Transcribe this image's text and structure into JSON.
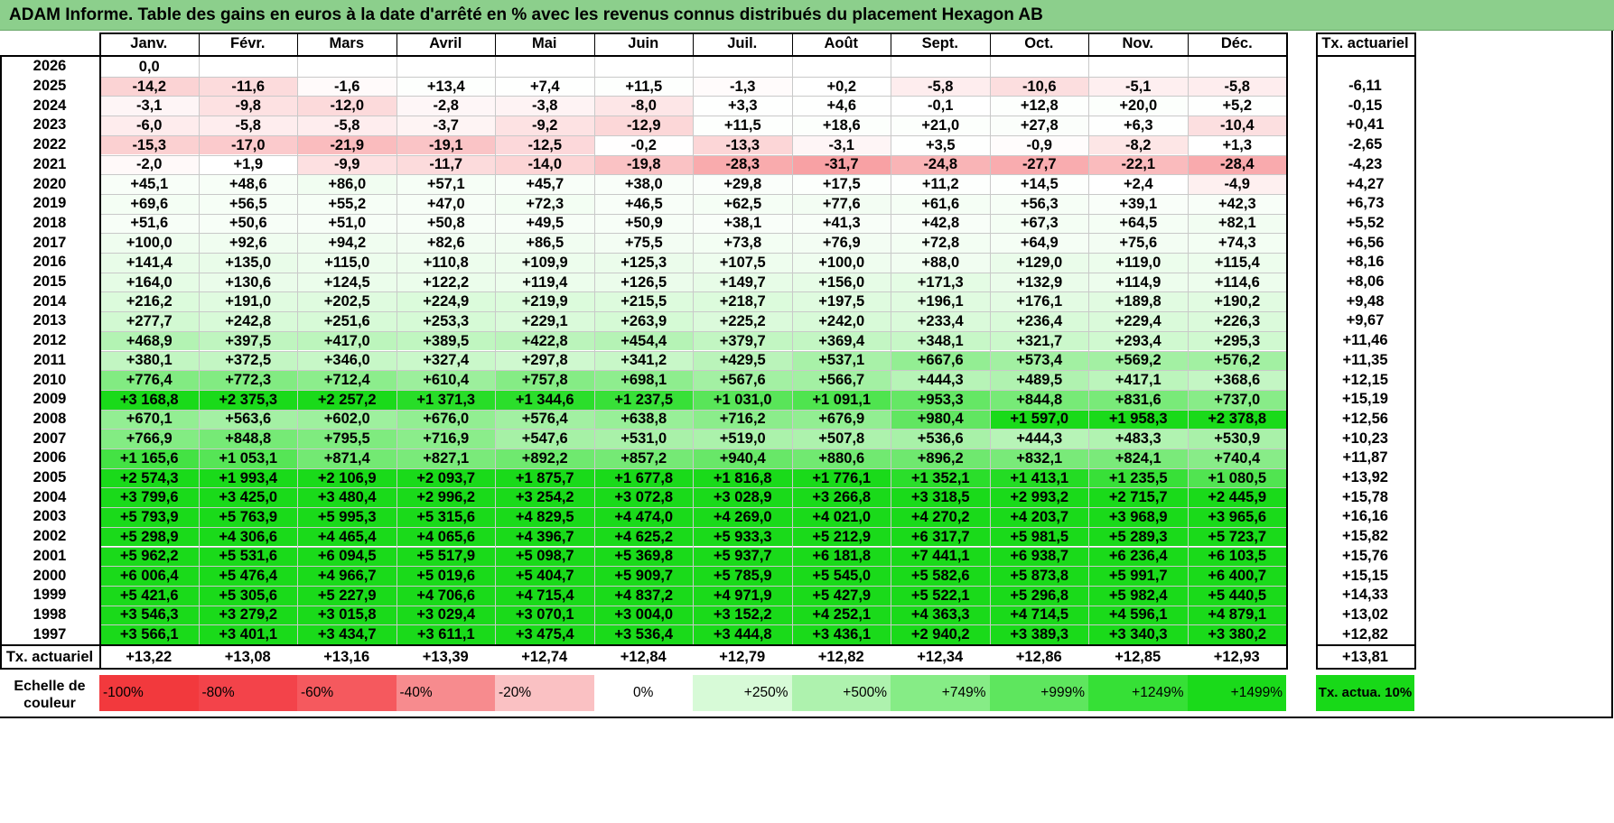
{
  "title": "ADAM Informe. Table des gains en euros à la date d'arrêté en % avec les revenus connus distribués du placement Hexagon AB",
  "months": [
    "Janv.",
    "Févr.",
    "Mars",
    "Avril",
    "Mai",
    "Juin",
    "Juil.",
    "Août",
    "Sept.",
    "Oct.",
    "Nov.",
    "Déc."
  ],
  "annual_header": "Tx. actuariel",
  "rows": [
    {
      "year": "2026",
      "values": [
        "0,0",
        "",
        "",
        "",
        "",
        "",
        "",
        "",
        "",
        "",
        "",
        ""
      ],
      "annual": ""
    },
    {
      "year": "2025",
      "values": [
        "-14,2",
        "-11,6",
        "-1,6",
        "+13,4",
        "+7,4",
        "+11,5",
        "-1,3",
        "+0,2",
        "-5,8",
        "-10,6",
        "-5,1",
        "-5,8"
      ],
      "annual": "-6,11"
    },
    {
      "year": "2024",
      "values": [
        "-3,1",
        "-9,8",
        "-12,0",
        "-2,8",
        "-3,8",
        "-8,0",
        "+3,3",
        "+4,6",
        "-0,1",
        "+12,8",
        "+20,0",
        "+5,2"
      ],
      "annual": "-0,15"
    },
    {
      "year": "2023",
      "values": [
        "-6,0",
        "-5,8",
        "-5,8",
        "-3,7",
        "-9,2",
        "-12,9",
        "+11,5",
        "+18,6",
        "+21,0",
        "+27,8",
        "+6,3",
        "-10,4"
      ],
      "annual": "+0,41"
    },
    {
      "year": "2022",
      "values": [
        "-15,3",
        "-17,0",
        "-21,9",
        "-19,1",
        "-12,5",
        "-0,2",
        "-13,3",
        "-3,1",
        "+3,5",
        "-0,9",
        "-8,2",
        "+1,3"
      ],
      "annual": "-2,65"
    },
    {
      "year": "2021",
      "values": [
        "-2,0",
        "+1,9",
        "-9,9",
        "-11,7",
        "-14,0",
        "-19,8",
        "-28,3",
        "-31,7",
        "-24,8",
        "-27,7",
        "-22,1",
        "-28,4"
      ],
      "annual": "-4,23"
    },
    {
      "year": "2020",
      "values": [
        "+45,1",
        "+48,6",
        "+86,0",
        "+57,1",
        "+45,7",
        "+38,0",
        "+29,8",
        "+17,5",
        "+11,2",
        "+14,5",
        "+2,4",
        "-4,9"
      ],
      "annual": "+4,27"
    },
    {
      "year": "2019",
      "values": [
        "+69,6",
        "+56,5",
        "+55,2",
        "+47,0",
        "+72,3",
        "+46,5",
        "+62,5",
        "+77,6",
        "+61,6",
        "+56,3",
        "+39,1",
        "+42,3"
      ],
      "annual": "+6,73"
    },
    {
      "year": "2018",
      "values": [
        "+51,6",
        "+50,6",
        "+51,0",
        "+50,8",
        "+49,5",
        "+50,9",
        "+38,1",
        "+41,3",
        "+42,8",
        "+67,3",
        "+64,5",
        "+82,1"
      ],
      "annual": "+5,52"
    },
    {
      "year": "2017",
      "values": [
        "+100,0",
        "+92,6",
        "+94,2",
        "+82,6",
        "+86,5",
        "+75,5",
        "+73,8",
        "+76,9",
        "+72,8",
        "+64,9",
        "+75,6",
        "+74,3"
      ],
      "annual": "+6,56"
    },
    {
      "year": "2016",
      "values": [
        "+141,4",
        "+135,0",
        "+115,0",
        "+110,8",
        "+109,9",
        "+125,3",
        "+107,5",
        "+100,0",
        "+88,0",
        "+129,0",
        "+119,0",
        "+115,4"
      ],
      "annual": "+8,16"
    },
    {
      "year": "2015",
      "values": [
        "+164,0",
        "+130,6",
        "+124,5",
        "+122,2",
        "+119,4",
        "+126,5",
        "+149,7",
        "+156,0",
        "+171,3",
        "+132,9",
        "+114,9",
        "+114,6"
      ],
      "annual": "+8,06"
    },
    {
      "year": "2014",
      "values": [
        "+216,2",
        "+191,0",
        "+202,5",
        "+224,9",
        "+219,9",
        "+215,5",
        "+218,7",
        "+197,5",
        "+196,1",
        "+176,1",
        "+189,8",
        "+190,2"
      ],
      "annual": "+9,48"
    },
    {
      "year": "2013",
      "values": [
        "+277,7",
        "+242,8",
        "+251,6",
        "+253,3",
        "+229,1",
        "+263,9",
        "+225,2",
        "+242,0",
        "+233,4",
        "+236,4",
        "+229,4",
        "+226,3"
      ],
      "annual": "+9,67"
    },
    {
      "year": "2012",
      "values": [
        "+468,9",
        "+397,5",
        "+417,0",
        "+389,5",
        "+422,8",
        "+454,4",
        "+379,7",
        "+369,4",
        "+348,1",
        "+321,7",
        "+293,4",
        "+295,3"
      ],
      "annual": "+11,46"
    },
    {
      "year": "2011",
      "values": [
        "+380,1",
        "+372,5",
        "+346,0",
        "+327,4",
        "+297,8",
        "+341,2",
        "+429,5",
        "+537,1",
        "+667,6",
        "+573,4",
        "+569,2",
        "+576,2"
      ],
      "annual": "+11,35"
    },
    {
      "year": "2010",
      "values": [
        "+776,4",
        "+772,3",
        "+712,4",
        "+610,4",
        "+757,8",
        "+698,1",
        "+567,6",
        "+566,7",
        "+444,3",
        "+489,5",
        "+417,1",
        "+368,6"
      ],
      "annual": "+12,15"
    },
    {
      "year": "2009",
      "values": [
        "+3 168,8",
        "+2 375,3",
        "+2 257,2",
        "+1 371,3",
        "+1 344,6",
        "+1 237,5",
        "+1 031,0",
        "+1 091,1",
        "+953,3",
        "+844,8",
        "+831,6",
        "+737,0"
      ],
      "annual": "+15,19"
    },
    {
      "year": "2008",
      "values": [
        "+670,1",
        "+563,6",
        "+602,0",
        "+676,0",
        "+576,4",
        "+638,8",
        "+716,2",
        "+676,9",
        "+980,4",
        "+1 597,0",
        "+1 958,3",
        "+2 378,8"
      ],
      "annual": "+12,56"
    },
    {
      "year": "2007",
      "values": [
        "+766,9",
        "+848,8",
        "+795,5",
        "+716,9",
        "+547,6",
        "+531,0",
        "+519,0",
        "+507,8",
        "+536,6",
        "+444,3",
        "+483,3",
        "+530,9"
      ],
      "annual": "+10,23"
    },
    {
      "year": "2006",
      "values": [
        "+1 165,6",
        "+1 053,1",
        "+871,4",
        "+827,1",
        "+892,2",
        "+857,2",
        "+940,4",
        "+880,6",
        "+896,2",
        "+832,1",
        "+824,1",
        "+740,4"
      ],
      "annual": "+11,87"
    },
    {
      "year": "2005",
      "values": [
        "+2 574,3",
        "+1 993,4",
        "+2 106,9",
        "+2 093,7",
        "+1 875,7",
        "+1 677,8",
        "+1 816,8",
        "+1 776,1",
        "+1 352,1",
        "+1 413,1",
        "+1 235,5",
        "+1 080,5"
      ],
      "annual": "+13,92"
    },
    {
      "year": "2004",
      "values": [
        "+3 799,6",
        "+3 425,0",
        "+3 480,4",
        "+2 996,2",
        "+3 254,2",
        "+3 072,8",
        "+3 028,9",
        "+3 266,8",
        "+3 318,5",
        "+2 993,2",
        "+2 715,7",
        "+2 445,9"
      ],
      "annual": "+15,78"
    },
    {
      "year": "2003",
      "values": [
        "+5 793,9",
        "+5 763,9",
        "+5 995,3",
        "+5 315,6",
        "+4 829,5",
        "+4 474,0",
        "+4 269,0",
        "+4 021,0",
        "+4 270,2",
        "+4 203,7",
        "+3 968,9",
        "+3 965,6"
      ],
      "annual": "+16,16"
    },
    {
      "year": "2002",
      "values": [
        "+5 298,9",
        "+4 306,6",
        "+4 465,4",
        "+4 065,6",
        "+4 396,7",
        "+4 625,2",
        "+5 933,3",
        "+5 212,9",
        "+6 317,7",
        "+5 981,5",
        "+5 289,3",
        "+5 723,7"
      ],
      "annual": "+15,82"
    },
    {
      "year": "2001",
      "values": [
        "+5 962,2",
        "+5 531,6",
        "+6 094,5",
        "+5 517,9",
        "+5 098,7",
        "+5 369,8",
        "+5 937,7",
        "+6 181,8",
        "+7 441,1",
        "+6 938,7",
        "+6 236,4",
        "+6 103,5"
      ],
      "annual": "+15,76"
    },
    {
      "year": "2000",
      "values": [
        "+6 006,4",
        "+5 476,4",
        "+4 966,7",
        "+5 019,6",
        "+5 404,7",
        "+5 909,7",
        "+5 785,9",
        "+5 545,0",
        "+5 582,6",
        "+5 873,8",
        "+5 991,7",
        "+6 400,7"
      ],
      "annual": "+15,15"
    },
    {
      "year": "1999",
      "values": [
        "+5 421,6",
        "+5 305,6",
        "+5 227,9",
        "+4 706,6",
        "+4 715,4",
        "+4 837,2",
        "+4 971,9",
        "+5 427,9",
        "+5 522,1",
        "+5 296,8",
        "+5 982,4",
        "+5 440,5"
      ],
      "annual": "+14,33"
    },
    {
      "year": "1998",
      "values": [
        "+3 546,3",
        "+3 279,2",
        "+3 015,8",
        "+3 029,4",
        "+3 070,1",
        "+3 004,0",
        "+3 152,2",
        "+4 252,1",
        "+4 363,3",
        "+4 714,5",
        "+4 596,1",
        "+4 879,1"
      ],
      "annual": "+13,02"
    },
    {
      "year": "1997",
      "values": [
        "+3 566,1",
        "+3 401,1",
        "+3 434,7",
        "+3 611,1",
        "+3 475,4",
        "+3 536,4",
        "+3 444,8",
        "+3 436,1",
        "+2 940,2",
        "+3 389,3",
        "+3 340,3",
        "+3 380,2"
      ],
      "annual": "+12,82"
    }
  ],
  "totals_row": {
    "label": "Tx. actuariel",
    "values": [
      "+13,22",
      "+13,08",
      "+13,16",
      "+13,39",
      "+12,74",
      "+12,84",
      "+12,79",
      "+12,82",
      "+12,34",
      "+12,86",
      "+12,85",
      "+12,93"
    ],
    "annual": "+13,81"
  },
  "legend": {
    "label": "Echelle de couleur",
    "items": [
      {
        "text": "-100%",
        "color": "#f2393d",
        "align": "left"
      },
      {
        "text": "-80%",
        "color": "#f3434a",
        "align": "left"
      },
      {
        "text": "-60%",
        "color": "#f5595e",
        "align": "left"
      },
      {
        "text": "-40%",
        "color": "#f78b8e",
        "align": "left"
      },
      {
        "text": "-20%",
        "color": "#fac1c3",
        "align": "left"
      },
      {
        "text": "0%",
        "color": "#ffffff",
        "align": "center"
      },
      {
        "text": "+250%",
        "color": "#d7fad7",
        "align": "right"
      },
      {
        "text": "+500%",
        "color": "#aef2ae",
        "align": "right"
      },
      {
        "text": "+749%",
        "color": "#86ec86",
        "align": "right"
      },
      {
        "text": "+999%",
        "color": "#5ee65e",
        "align": "right"
      },
      {
        "text": "+1249%",
        "color": "#36e036",
        "align": "right"
      },
      {
        "text": "+1499%",
        "color": "#1ada1a",
        "align": "right"
      }
    ],
    "annual_label": "Tx. actua. 10%",
    "annual_color": "#18d918"
  },
  "colors": {
    "title_bg": "#8ccf8c",
    "neg_scale": [
      "#ffffff",
      "#fac1c3",
      "#f78b8e",
      "#f5595e",
      "#f3434a",
      "#f2393d"
    ],
    "pos_scale": [
      "#ffffff",
      "#d7fad7",
      "#aef2ae",
      "#86ec86",
      "#5ee65e",
      "#36e036",
      "#1ada1a"
    ]
  }
}
